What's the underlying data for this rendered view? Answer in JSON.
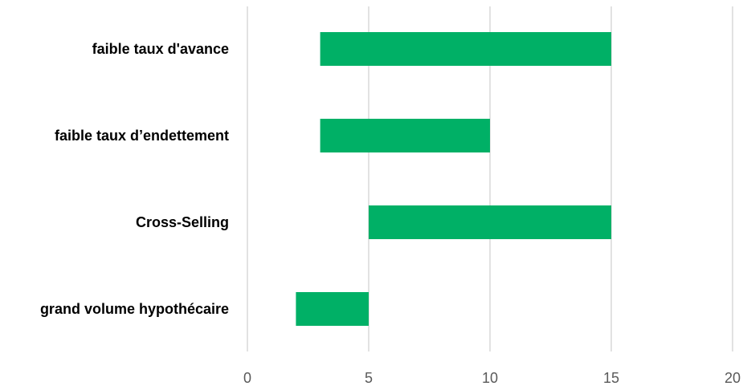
{
  "chart_data": {
    "type": "bar",
    "orientation": "horizontal",
    "style": "floating-range",
    "categories": [
      "faible taux d'avance",
      "faible taux d’endettement",
      "Cross-Selling",
      "grand volume hypothécaire"
    ],
    "series": [
      {
        "ranges": [
          [
            3,
            15
          ],
          [
            3,
            10
          ],
          [
            5,
            15
          ],
          [
            2,
            5
          ]
        ]
      }
    ],
    "x_ticks": [
      "0",
      "5",
      "10",
      "15",
      "20"
    ],
    "xlim": [
      0,
      20
    ],
    "grid": true,
    "bar_color": "#00b066",
    "grid_color": "#d9d9d9",
    "tick_color": "#595959"
  }
}
